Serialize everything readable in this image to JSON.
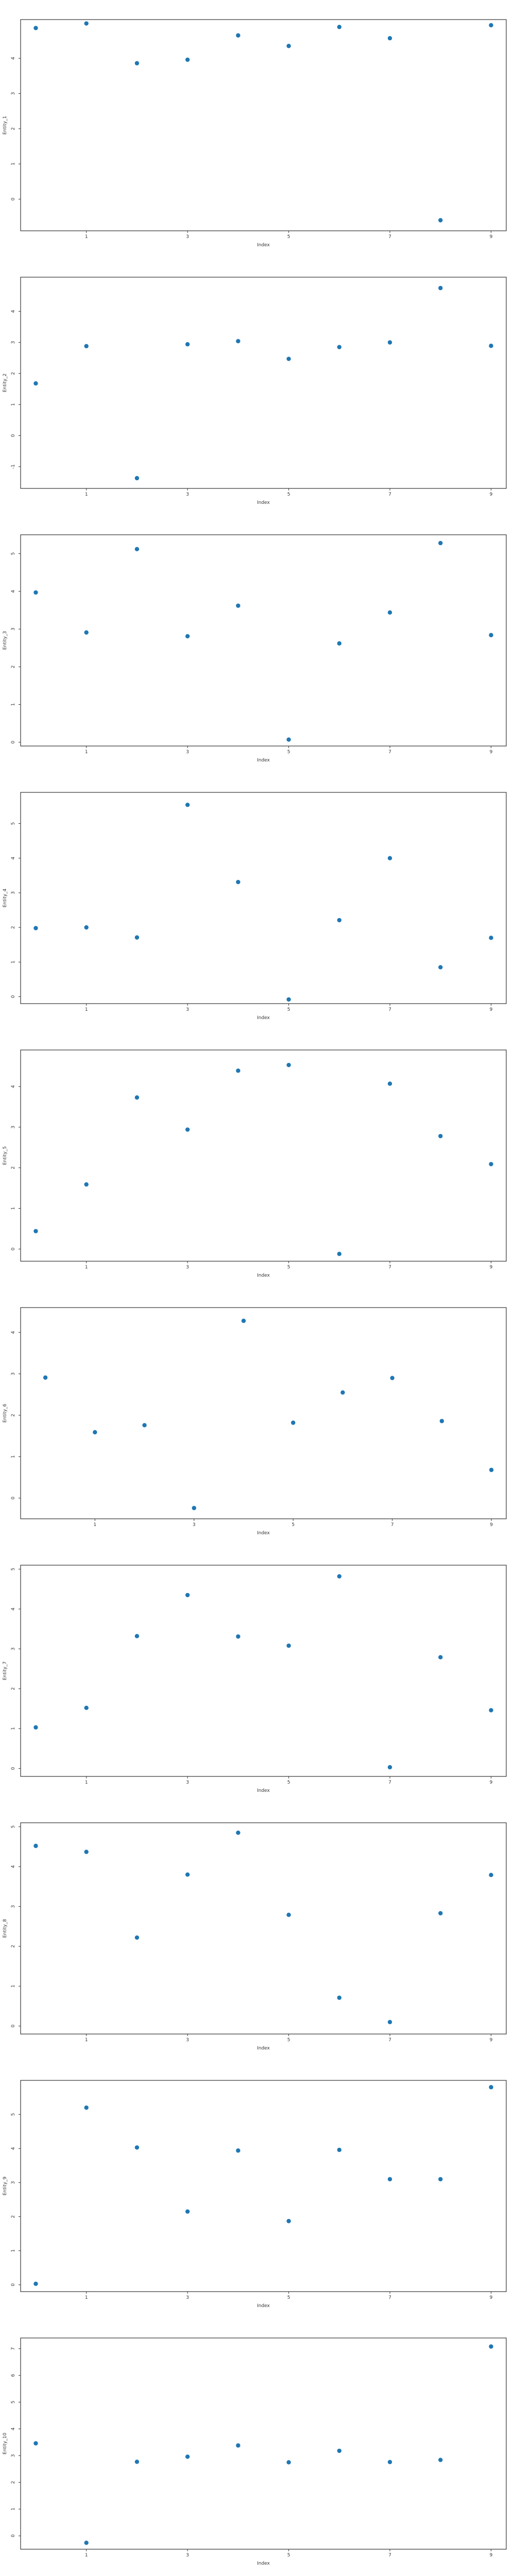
{
  "chart_data": [
    {
      "type": "scatter",
      "xlabel": "Index",
      "ylabel": "Entity_1",
      "x": [
        0,
        1,
        2,
        3,
        4,
        5,
        6,
        7,
        8,
        9
      ],
      "y": [
        4.86,
        4.99,
        3.86,
        3.96,
        4.65,
        4.35,
        4.89,
        4.57,
        -0.6,
        4.94
      ],
      "xlim": [
        -0.3,
        9.3
      ],
      "ylim": [
        -0.9,
        5.1
      ],
      "xticks": [
        1,
        3,
        5,
        7,
        9
      ],
      "yticks": [
        0,
        1,
        2,
        3,
        4
      ],
      "color": "#1f77b4"
    },
    {
      "type": "scatter",
      "xlabel": "Index",
      "ylabel": "Entity_2",
      "x": [
        0,
        1,
        2,
        3,
        4,
        5,
        6,
        7,
        8,
        9
      ],
      "y": [
        1.68,
        2.88,
        -1.37,
        2.94,
        3.04,
        2.47,
        2.85,
        3.0,
        4.75,
        2.89
      ],
      "xlim": [
        -0.3,
        9.3
      ],
      "ylim": [
        -1.7,
        5.1
      ],
      "xticks": [
        1,
        3,
        5,
        7,
        9
      ],
      "yticks": [
        -1,
        0,
        1,
        2,
        3,
        4
      ],
      "color": "#1f77b4"
    },
    {
      "type": "scatter",
      "xlabel": "Index",
      "ylabel": "Entity_3",
      "x": [
        0,
        1,
        2,
        3,
        4,
        5,
        6,
        7,
        8,
        9
      ],
      "y": [
        3.97,
        2.91,
        5.12,
        2.81,
        3.62,
        0.07,
        2.62,
        3.44,
        5.28,
        2.84
      ],
      "xlim": [
        -0.3,
        9.3
      ],
      "ylim": [
        -0.1,
        5.5
      ],
      "xticks": [
        1,
        3,
        5,
        7,
        9
      ],
      "yticks": [
        0,
        1,
        2,
        3,
        4,
        5
      ],
      "color": "#1f77b4"
    },
    {
      "type": "scatter",
      "xlabel": "Index",
      "ylabel": "Entity_4",
      "x": [
        0,
        1,
        2,
        3,
        4,
        5,
        6,
        7,
        8,
        9
      ],
      "y": [
        1.98,
        2.0,
        1.71,
        5.54,
        3.31,
        -0.08,
        2.21,
        4.0,
        0.85,
        1.7
      ],
      "xlim": [
        -0.3,
        9.3
      ],
      "ylim": [
        -0.2,
        5.9
      ],
      "xticks": [
        1,
        3,
        5,
        7,
        9
      ],
      "yticks": [
        0,
        1,
        2,
        3,
        4,
        5
      ],
      "color": "#1f77b4"
    },
    {
      "type": "scatter",
      "xlabel": "Index",
      "ylabel": "Entity_5",
      "x": [
        0,
        1,
        2,
        3,
        4,
        5,
        6,
        7,
        8,
        9
      ],
      "y": [
        0.44,
        1.59,
        3.73,
        2.94,
        4.39,
        4.53,
        -0.12,
        4.07,
        2.78,
        2.09
      ],
      "xlim": [
        -0.3,
        9.3
      ],
      "ylim": [
        -0.3,
        4.9
      ],
      "xticks": [
        1,
        3,
        5,
        7,
        9
      ],
      "yticks": [
        0,
        1,
        2,
        3,
        4
      ],
      "color": "#1f77b4"
    },
    {
      "type": "scatter",
      "xlabel": "Index",
      "ylabel": "Entity_6",
      "x": [
        0,
        1,
        2,
        3,
        4,
        5,
        6,
        7,
        8,
        9
      ],
      "y": [
        2.91,
        1.59,
        1.76,
        -0.24,
        4.28,
        1.82,
        2.55,
        2.9,
        1.86,
        0.68
      ],
      "xlim": [
        -0.5,
        9.3
      ],
      "ylim": [
        -0.5,
        4.6
      ],
      "xticks": [
        1,
        3,
        5,
        7,
        9
      ],
      "yticks": [
        0,
        1,
        2,
        3,
        4
      ],
      "color": "#1f77b4"
    },
    {
      "type": "scatter",
      "xlabel": "Index",
      "ylabel": "Entity_7",
      "x": [
        0,
        1,
        2,
        3,
        4,
        5,
        6,
        7,
        8,
        9
      ],
      "y": [
        1.03,
        1.52,
        3.32,
        4.35,
        3.31,
        3.08,
        4.82,
        0.03,
        2.79,
        1.46
      ],
      "xlim": [
        -0.3,
        9.3
      ],
      "ylim": [
        -0.2,
        5.1
      ],
      "xticks": [
        1,
        3,
        5,
        7,
        9
      ],
      "yticks": [
        0,
        1,
        2,
        3,
        4,
        5
      ],
      "color": "#1f77b4"
    },
    {
      "type": "scatter",
      "xlabel": "Index",
      "ylabel": "Entity_8",
      "x": [
        0,
        1,
        2,
        3,
        4,
        5,
        6,
        7,
        8,
        9
      ],
      "y": [
        4.52,
        4.37,
        2.22,
        3.8,
        4.85,
        2.79,
        0.71,
        0.1,
        2.83,
        3.79
      ],
      "xlim": [
        -0.3,
        9.3
      ],
      "ylim": [
        -0.2,
        5.1
      ],
      "xticks": [
        1,
        3,
        5,
        7,
        9
      ],
      "yticks": [
        0,
        1,
        2,
        3,
        4,
        5
      ],
      "color": "#1f77b4"
    },
    {
      "type": "scatter",
      "xlabel": "Index",
      "ylabel": "Entity_9",
      "x": [
        0,
        1,
        2,
        3,
        4,
        5,
        6,
        7,
        8,
        9
      ],
      "y": [
        0.03,
        5.2,
        4.03,
        2.15,
        3.94,
        1.87,
        3.96,
        3.1,
        3.1,
        5.8
      ],
      "xlim": [
        -0.3,
        9.3
      ],
      "ylim": [
        -0.2,
        6.0
      ],
      "xticks": [
        1,
        3,
        5,
        7,
        9
      ],
      "yticks": [
        0,
        1,
        2,
        3,
        4,
        5
      ],
      "color": "#1f77b4"
    },
    {
      "type": "scatter",
      "xlabel": "Index",
      "ylabel": "Entity_10",
      "x": [
        0,
        1,
        2,
        3,
        4,
        5,
        6,
        7,
        8,
        9
      ],
      "y": [
        3.46,
        -0.26,
        2.77,
        2.96,
        3.38,
        2.75,
        3.18,
        2.76,
        2.84,
        7.08
      ],
      "xlim": [
        -0.3,
        9.3
      ],
      "ylim": [
        -0.5,
        7.4
      ],
      "xticks": [
        1,
        3,
        5,
        7,
        9
      ],
      "yticks": [
        0,
        1,
        2,
        3,
        4,
        5,
        6,
        7
      ],
      "color": "#1f77b4"
    }
  ]
}
